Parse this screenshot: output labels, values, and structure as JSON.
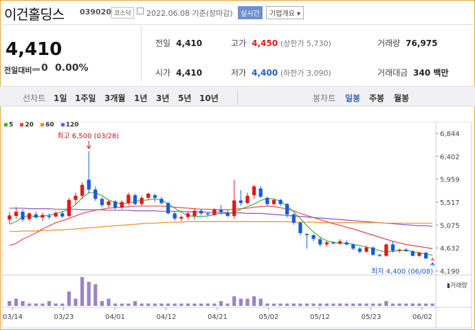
{
  "header": {
    "name": "이건홀딩스",
    "code": "039020",
    "market": "코스닥",
    "date": "2022.06.08",
    "basis": "기준(장마감)",
    "live_badge": "실시간",
    "corp_button": "기업개요 ▾"
  },
  "price": {
    "current": "4,410",
    "change_label": "전일대비",
    "change": "0",
    "change_pct": "0.00%"
  },
  "quotes": {
    "prev_label": "전일",
    "prev": "4,410",
    "open_label": "시가",
    "open": "4,410",
    "high_label": "고가",
    "high": "4,450",
    "upper_limit": "(상한가 5,730)",
    "low_label": "저가",
    "low": "4,400",
    "lower_limit": "(하한가 3,090)",
    "volume_label": "거래량",
    "volume": "76,975",
    "amount_label": "거래대금",
    "amount": "340 백만"
  },
  "tabs": {
    "line_label": "선차트",
    "periods": [
      "1일",
      "1주일",
      "3개월",
      "1년",
      "3년",
      "5년",
      "10년"
    ],
    "candle_label": "봉차트",
    "candles": [
      "일봉",
      "주봉",
      "월봉"
    ],
    "active_candle": "일봉"
  },
  "colors": {
    "up": "#e0191a",
    "down": "#1a5bd5",
    "ma5": "#3bb33b",
    "ma20": "#e0493f",
    "ma60": "#f08a1c",
    "ma120": "#8a50c8",
    "volume": "#9b85c4",
    "frame": "#e8a33a"
  },
  "chart_data": {
    "type": "candlestick",
    "legend": [
      {
        "name": "5",
        "color": "#3bb33b"
      },
      {
        "name": "20",
        "color": "#e0493f"
      },
      {
        "name": "60",
        "color": "#f08a1c"
      },
      {
        "name": "120",
        "color": "#8a50c8"
      }
    ],
    "y_ticks": [
      "6,844",
      "6,402",
      "5,959",
      "5,517",
      "5,075",
      "4,632",
      "4,190"
    ],
    "ylim": [
      4190,
      6844
    ],
    "x_ticks": [
      "03/14",
      "03/23",
      "04/01",
      "04/12",
      "04/21",
      "05/02",
      "05/12",
      "05/23",
      "06/02"
    ],
    "max_annotation": "최고 6,500 (03/28)",
    "min_annotation": "최저 4,400 (06/08)",
    "volume_label": "거래량",
    "candles": [
      {
        "o": 5180,
        "h": 5330,
        "l": 5100,
        "c": 5260
      },
      {
        "o": 5250,
        "h": 5420,
        "l": 5200,
        "c": 5330
      },
      {
        "o": 5330,
        "h": 5380,
        "l": 5140,
        "c": 5180
      },
      {
        "o": 5190,
        "h": 5320,
        "l": 5150,
        "c": 5300
      },
      {
        "o": 5280,
        "h": 5330,
        "l": 5200,
        "c": 5220
      },
      {
        "o": 5220,
        "h": 5310,
        "l": 5150,
        "c": 5270
      },
      {
        "o": 5250,
        "h": 5300,
        "l": 5190,
        "c": 5230
      },
      {
        "o": 5240,
        "h": 5340,
        "l": 5220,
        "c": 5310
      },
      {
        "o": 5300,
        "h": 5350,
        "l": 5210,
        "c": 5240
      },
      {
        "o": 5250,
        "h": 5600,
        "l": 5220,
        "c": 5560
      },
      {
        "o": 5560,
        "h": 5700,
        "l": 5480,
        "c": 5640
      },
      {
        "o": 5640,
        "h": 5900,
        "l": 5580,
        "c": 5850
      },
      {
        "o": 5950,
        "h": 6500,
        "l": 5680,
        "c": 5760
      },
      {
        "o": 5760,
        "h": 5820,
        "l": 5540,
        "c": 5580
      },
      {
        "o": 5580,
        "h": 5610,
        "l": 5420,
        "c": 5460
      },
      {
        "o": 5460,
        "h": 5560,
        "l": 5400,
        "c": 5530
      },
      {
        "o": 5530,
        "h": 5560,
        "l": 5380,
        "c": 5410
      },
      {
        "o": 5410,
        "h": 5550,
        "l": 5380,
        "c": 5520
      },
      {
        "o": 5500,
        "h": 5700,
        "l": 5460,
        "c": 5660
      },
      {
        "o": 5650,
        "h": 5680,
        "l": 5460,
        "c": 5480
      },
      {
        "o": 5480,
        "h": 5640,
        "l": 5440,
        "c": 5600
      },
      {
        "o": 5600,
        "h": 5700,
        "l": 5560,
        "c": 5680
      },
      {
        "o": 5650,
        "h": 5680,
        "l": 5520,
        "c": 5600
      },
      {
        "o": 5580,
        "h": 5620,
        "l": 5470,
        "c": 5500
      },
      {
        "o": 5500,
        "h": 5520,
        "l": 5280,
        "c": 5300
      },
      {
        "o": 5300,
        "h": 5340,
        "l": 5160,
        "c": 5200
      },
      {
        "o": 5200,
        "h": 5260,
        "l": 5150,
        "c": 5230
      },
      {
        "o": 5230,
        "h": 5340,
        "l": 5180,
        "c": 5300
      },
      {
        "o": 5250,
        "h": 5400,
        "l": 5180,
        "c": 5350
      },
      {
        "o": 5350,
        "h": 5380,
        "l": 5260,
        "c": 5300
      },
      {
        "o": 5300,
        "h": 5320,
        "l": 5250,
        "c": 5280
      },
      {
        "o": 5270,
        "h": 5400,
        "l": 5250,
        "c": 5380
      },
      {
        "o": 5370,
        "h": 5460,
        "l": 5280,
        "c": 5330
      },
      {
        "o": 5320,
        "h": 5360,
        "l": 5230,
        "c": 5250
      },
      {
        "o": 5250,
        "h": 5950,
        "l": 5200,
        "c": 5550
      },
      {
        "o": 5550,
        "h": 5750,
        "l": 5450,
        "c": 5500
      },
      {
        "o": 5500,
        "h": 5700,
        "l": 5470,
        "c": 5640
      },
      {
        "o": 5650,
        "h": 5850,
        "l": 5580,
        "c": 5820
      },
      {
        "o": 5780,
        "h": 5830,
        "l": 5600,
        "c": 5620
      },
      {
        "o": 5600,
        "h": 5620,
        "l": 5440,
        "c": 5480
      },
      {
        "o": 5480,
        "h": 5580,
        "l": 5460,
        "c": 5560
      },
      {
        "o": 5560,
        "h": 5580,
        "l": 5440,
        "c": 5480
      },
      {
        "o": 5480,
        "h": 5500,
        "l": 5220,
        "c": 5280
      },
      {
        "o": 5280,
        "h": 5300,
        "l": 5080,
        "c": 5120
      },
      {
        "o": 5120,
        "h": 5140,
        "l": 4880,
        "c": 4920
      },
      {
        "o": 4900,
        "h": 4920,
        "l": 4620,
        "c": 4880
      },
      {
        "o": 4880,
        "h": 4900,
        "l": 4760,
        "c": 4810
      },
      {
        "o": 4800,
        "h": 4840,
        "l": 4660,
        "c": 4700
      },
      {
        "o": 4700,
        "h": 4760,
        "l": 4660,
        "c": 4740
      },
      {
        "o": 4740,
        "h": 4760,
        "l": 4700,
        "c": 4720
      },
      {
        "o": 4720,
        "h": 4800,
        "l": 4690,
        "c": 4760
      },
      {
        "o": 4740,
        "h": 4780,
        "l": 4680,
        "c": 4700
      },
      {
        "o": 4700,
        "h": 4720,
        "l": 4590,
        "c": 4620
      },
      {
        "o": 4620,
        "h": 4650,
        "l": 4530,
        "c": 4560
      },
      {
        "o": 4560,
        "h": 4680,
        "l": 4540,
        "c": 4640
      },
      {
        "o": 4640,
        "h": 4660,
        "l": 4480,
        "c": 4500
      },
      {
        "o": 4500,
        "h": 4520,
        "l": 4460,
        "c": 4480
      },
      {
        "o": 4480,
        "h": 4720,
        "l": 4460,
        "c": 4700
      },
      {
        "o": 4700,
        "h": 4760,
        "l": 4540,
        "c": 4580
      },
      {
        "o": 4580,
        "h": 4620,
        "l": 4540,
        "c": 4600
      },
      {
        "o": 4600,
        "h": 4630,
        "l": 4560,
        "c": 4570
      },
      {
        "o": 4570,
        "h": 4590,
        "l": 4470,
        "c": 4480
      },
      {
        "o": 4480,
        "h": 4560,
        "l": 4460,
        "c": 4540
      },
      {
        "o": 4540,
        "h": 4560,
        "l": 4420,
        "c": 4430
      },
      {
        "o": 4410,
        "h": 4450,
        "l": 4400,
        "c": 4410
      }
    ],
    "volumes": [
      2,
      3,
      2,
      1,
      1,
      1,
      2,
      1,
      1,
      6,
      3,
      12,
      10,
      9,
      2,
      3,
      1,
      1,
      1,
      2,
      1,
      1,
      1,
      1,
      1,
      1,
      1,
      1,
      1,
      1,
      1,
      1,
      2,
      1,
      4,
      3,
      3,
      4,
      3,
      1,
      1,
      1,
      1,
      1,
      1,
      1,
      1,
      1,
      1,
      1,
      1,
      1,
      1,
      1,
      1,
      1,
      1,
      2,
      1,
      1,
      1,
      1,
      1,
      1,
      1
    ],
    "ma5": [
      5090,
      5140,
      5230,
      5260,
      5230,
      5250,
      5260,
      5300,
      5330,
      5380,
      5470,
      5600,
      5700,
      5700,
      5640,
      5560,
      5510,
      5480,
      5500,
      5530,
      5550,
      5560,
      5580,
      5560,
      5480,
      5400,
      5320,
      5260,
      5240,
      5240,
      5250,
      5280,
      5300,
      5300,
      5320,
      5380,
      5430,
      5480,
      5550,
      5590,
      5580,
      5530,
      5440,
      5330,
      5200,
      5060,
      4940,
      4840,
      4770,
      4740,
      4720,
      4730,
      4700,
      4680,
      4650,
      4620,
      4580,
      4560,
      4570,
      4580,
      4590,
      4560,
      4540,
      4520,
      4490
    ],
    "ma20": [
      4680,
      4720,
      4800,
      4860,
      4920,
      5000,
      5060,
      5120,
      5160,
      5200,
      5250,
      5300,
      5330,
      5360,
      5380,
      5400,
      5410,
      5420,
      5430,
      5440,
      5440,
      5440,
      5440,
      5440,
      5430,
      5420,
      5410,
      5400,
      5390,
      5380,
      5380,
      5370,
      5370,
      5370,
      5380,
      5390,
      5400,
      5420,
      5430,
      5440,
      5430,
      5410,
      5380,
      5350,
      5300,
      5260,
      5220,
      5180,
      5140,
      5100,
      5070,
      5030,
      5000,
      4960,
      4920,
      4880,
      4840,
      4800,
      4760,
      4730,
      4700,
      4680,
      4660,
      4640,
      4620
    ],
    "ma60": [
      4950,
      4950,
      4960,
      4960,
      4960,
      4970,
      4970,
      4980,
      4980,
      4990,
      5000,
      5010,
      5020,
      5030,
      5040,
      5050,
      5060,
      5070,
      5080,
      5090,
      5100,
      5110,
      5110,
      5120,
      5130,
      5130,
      5130,
      5140,
      5140,
      5140,
      5140,
      5140,
      5140,
      5140,
      5140,
      5140,
      5140,
      5140,
      5140,
      5140,
      5140,
      5140,
      5140,
      5130,
      5130,
      5130,
      5130,
      5120,
      5120,
      5120,
      5120,
      5120,
      5120,
      5120,
      5120,
      5120,
      5120,
      5110,
      5110,
      5110,
      5110,
      5110,
      5110,
      5110,
      5110
    ],
    "ma120": [
      5400,
      5400,
      5400,
      5390,
      5390,
      5390,
      5390,
      5380,
      5380,
      5380,
      5380,
      5370,
      5370,
      5370,
      5370,
      5360,
      5360,
      5360,
      5360,
      5350,
      5350,
      5350,
      5350,
      5340,
      5340,
      5340,
      5340,
      5330,
      5330,
      5330,
      5320,
      5320,
      5320,
      5310,
      5310,
      5310,
      5300,
      5300,
      5300,
      5290,
      5280,
      5270,
      5260,
      5250,
      5240,
      5230,
      5220,
      5210,
      5200,
      5190,
      5180,
      5170,
      5160,
      5150,
      5140,
      5130,
      5120,
      5110,
      5100,
      5090,
      5080,
      5070,
      5060,
      5060,
      5050
    ]
  }
}
